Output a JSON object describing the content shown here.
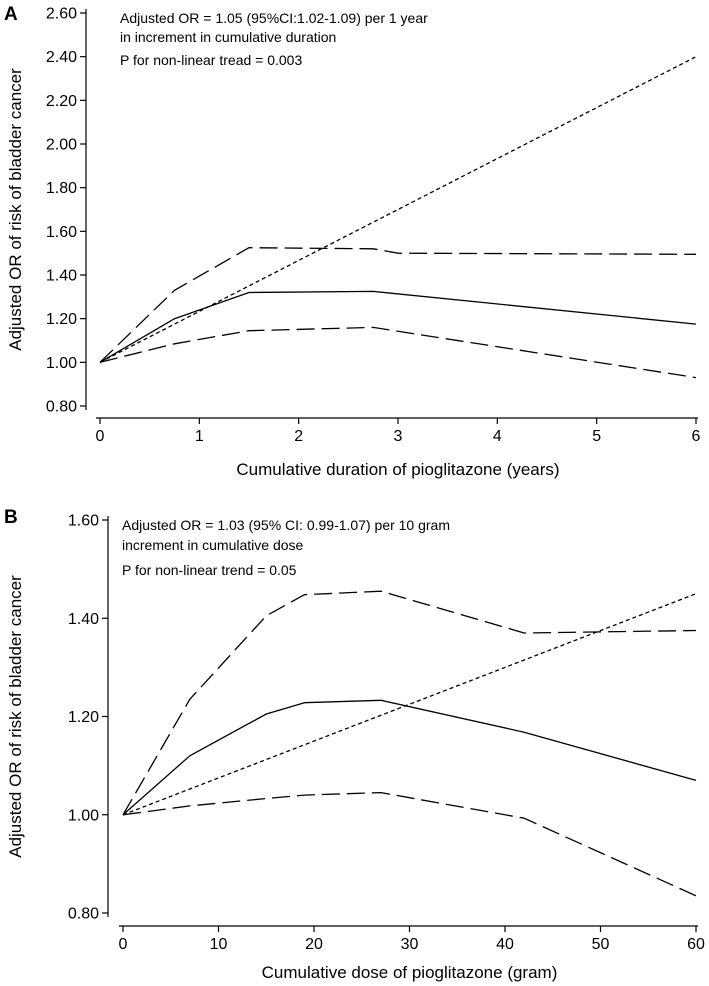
{
  "chart_data": [
    {
      "type": "line",
      "panel_label": "A",
      "xlabel": "Cumulative duration of pioglitazone (years)",
      "ylabel": "Adjusted OR of risk of bladder cancer",
      "xlim": [
        0,
        6
      ],
      "ylim": [
        0.8,
        2.6
      ],
      "x_ticks": [
        "0",
        "1",
        "2",
        "3",
        "4",
        "5",
        "6"
      ],
      "y_ticks": [
        "0.80",
        "1.00",
        "1.20",
        "1.40",
        "1.60",
        "1.80",
        "2.00",
        "2.20",
        "2.40",
        "2.60"
      ],
      "annotations": [
        "Adjusted OR = 1.05 (95%CI:1.02-1.09) per 1 year",
        "in increment in cumulative duration",
        "P for non-linear tread = 0.003"
      ],
      "series": [
        {
          "style": "solid",
          "x": [
            0,
            0.75,
            1.5,
            2.75,
            6
          ],
          "y": [
            1.0,
            1.2,
            1.32,
            1.325,
            1.175
          ]
        },
        {
          "style": "long-dash",
          "x": [
            0,
            0.75,
            1.5,
            2.75,
            3.0,
            6
          ],
          "y": [
            1.0,
            1.33,
            1.525,
            1.52,
            1.5,
            1.495
          ]
        },
        {
          "style": "long-dash",
          "x": [
            0,
            0.75,
            1.5,
            2.75,
            6
          ],
          "y": [
            1.0,
            1.085,
            1.145,
            1.16,
            0.93
          ]
        },
        {
          "style": "short-dash",
          "x": [
            0,
            6
          ],
          "y": [
            1.0,
            2.4
          ]
        }
      ]
    },
    {
      "type": "line",
      "panel_label": "B",
      "xlabel": "Cumulative dose of pioglitazone (gram)",
      "ylabel": "Adjusted OR of risk of bladder cancer",
      "xlim": [
        0,
        60
      ],
      "ylim": [
        0.8,
        1.6
      ],
      "x_ticks": [
        "0",
        "10",
        "20",
        "30",
        "40",
        "50",
        "60"
      ],
      "y_ticks": [
        "0.80",
        "1.00",
        "1.20",
        "1.40",
        "1.60"
      ],
      "annotations": [
        "Adjusted OR = 1.03 (95% CI: 0.99-1.07) per 10 gram",
        "increment in cumulative dose",
        "P for non-linear trend = 0.05"
      ],
      "series": [
        {
          "style": "solid",
          "x": [
            0,
            7,
            15,
            19,
            27,
            42,
            60
          ],
          "y": [
            1.0,
            1.12,
            1.205,
            1.228,
            1.233,
            1.168,
            1.07
          ]
        },
        {
          "style": "long-dash",
          "x": [
            0,
            7,
            15,
            19,
            27,
            42,
            60
          ],
          "y": [
            1.0,
            1.235,
            1.405,
            1.448,
            1.455,
            1.37,
            1.375
          ]
        },
        {
          "style": "long-dash",
          "x": [
            0,
            7,
            15,
            19,
            27,
            42,
            60
          ],
          "y": [
            1.0,
            1.018,
            1.033,
            1.04,
            1.045,
            0.993,
            0.835
          ]
        },
        {
          "style": "short-dash",
          "x": [
            0,
            60
          ],
          "y": [
            1.0,
            1.45
          ]
        }
      ]
    }
  ]
}
